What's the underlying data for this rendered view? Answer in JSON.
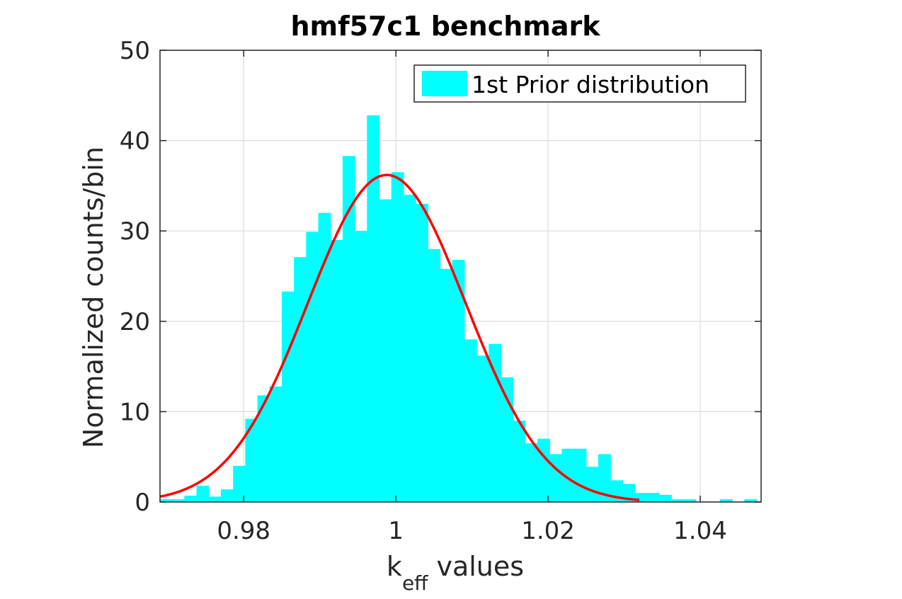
{
  "chart_data": {
    "type": "bar",
    "title": "hmf57c1 benchmark",
    "xlabel": {
      "main": "k",
      "subscript": "eff",
      "suffix": "values"
    },
    "ylabel": "Normalized counts/bin",
    "xlim": [
      0.969,
      1.048
    ],
    "ylim": [
      0,
      50
    ],
    "xticks": [
      0.98,
      1.0,
      1.02,
      1.04
    ],
    "xtick_labels": [
      "0.98",
      "1",
      "1.02",
      "1.04"
    ],
    "yticks": [
      0,
      10,
      20,
      30,
      40,
      50
    ],
    "ytick_labels": [
      "0",
      "10",
      "20",
      "30",
      "40",
      "50"
    ],
    "grid": true,
    "legend_position": "top-right",
    "bin_width": 0.0016,
    "bins_start": 0.969,
    "series": [
      {
        "name": "1st Prior distribution",
        "color": "#00ffff",
        "values": [
          0.3,
          0.3,
          0.7,
          1.8,
          0.6,
          1.4,
          4.0,
          9.2,
          11.8,
          12.8,
          23.3,
          27.1,
          29.9,
          32.0,
          29.0,
          38.3,
          30.0,
          42.8,
          33.5,
          36.5,
          34.0,
          33.0,
          28.0,
          25.8,
          26.8,
          18.0,
          16.2,
          17.5,
          13.8,
          9.0,
          6.5,
          7.0,
          5.3,
          5.9,
          5.9,
          3.9,
          5.3,
          2.4,
          2.0,
          1.0,
          1.0,
          0.8,
          0.3,
          0.3,
          0.0,
          0.0,
          0.3,
          0.0,
          0.3
        ]
      }
    ],
    "fit_curve": {
      "color": "#ff0000",
      "mean": 0.9988,
      "sigma": 0.0104,
      "peak": 36.2,
      "x_range": [
        0.969,
        1.032
      ]
    }
  }
}
